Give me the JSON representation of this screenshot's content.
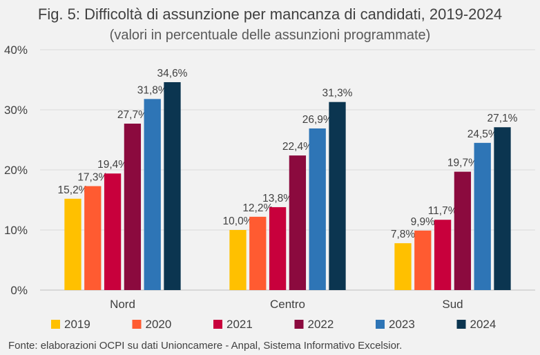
{
  "header": {
    "title": "Fig. 5: Difficoltà di assunzione per mancanza di candidati, 2019-2024",
    "subtitle": "(valori in percentuale delle assunzioni programmate)"
  },
  "source": "Fonte: elaborazioni OCPI su dati Unioncamere - Anpal, Sistema Informativo Excelsior.",
  "chart_data": {
    "type": "bar",
    "title": "Fig. 5: Difficoltà di assunzione per mancanza di candidati, 2019-2024",
    "subtitle": "(valori in percentuale delle assunzioni programmate)",
    "xlabel": "",
    "ylabel": "",
    "ylim": [
      0,
      40
    ],
    "yticks": [
      0,
      10,
      20,
      30,
      40
    ],
    "ytick_labels": [
      "0%",
      "10%",
      "20%",
      "30%",
      "40%"
    ],
    "grid": true,
    "legend_position": "bottom",
    "categories": [
      "Nord",
      "Centro",
      "Sud"
    ],
    "series": [
      {
        "name": "2019",
        "color": "#FFC000",
        "values": [
          15.2,
          10.0,
          7.8
        ],
        "labels": [
          "15,2%",
          "10,0%",
          "7,8%"
        ]
      },
      {
        "name": "2020",
        "color": "#FF5B31",
        "values": [
          17.3,
          12.2,
          9.9
        ],
        "labels": [
          "17,3%",
          "12,2%",
          "9,9%"
        ]
      },
      {
        "name": "2021",
        "color": "#C8003C",
        "values": [
          19.4,
          13.8,
          11.7
        ],
        "labels": [
          "19,4%",
          "13,8%",
          "11,7%"
        ]
      },
      {
        "name": "2022",
        "color": "#8B0A3E",
        "values": [
          27.7,
          22.4,
          19.7
        ],
        "labels": [
          "27,7%",
          "22,4%",
          "19,7%"
        ]
      },
      {
        "name": "2023",
        "color": "#2E75B6",
        "values": [
          31.8,
          26.9,
          24.5
        ],
        "labels": [
          "31,8%",
          "26,9%",
          "24,5%"
        ]
      },
      {
        "name": "2024",
        "color": "#0B3550",
        "values": [
          34.6,
          31.3,
          27.1
        ],
        "labels": [
          "34,6%",
          "31,3%",
          "27,1%"
        ]
      }
    ]
  }
}
